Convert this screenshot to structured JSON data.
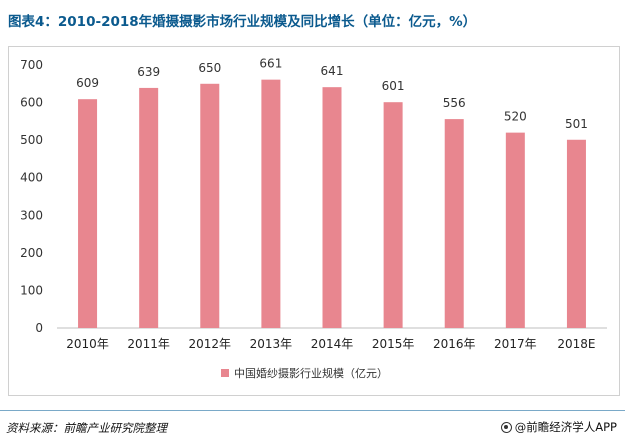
{
  "title": "图表4：2010-2018年婚摄摄影市场行业规模及同比增长（单位：亿元，%）",
  "source": "资料来源：前瞻产业研究院整理",
  "brand": "@前瞻经济学人APP",
  "chart_data": {
    "type": "bar",
    "categories": [
      "2010年",
      "2011年",
      "2012年",
      "2013年",
      "2014年",
      "2015年",
      "2016年",
      "2017年",
      "2018E"
    ],
    "series": [
      {
        "name": "中国婚纱摄影行业规模（亿元）",
        "values": [
          609,
          639,
          650,
          661,
          641,
          601,
          556,
          520,
          501
        ]
      }
    ],
    "ylim": [
      0,
      700
    ],
    "yticks": [
      0,
      100,
      200,
      300,
      400,
      500,
      600,
      700
    ],
    "legend": "bottom",
    "grid": false,
    "bar_color": "#e8868f"
  }
}
